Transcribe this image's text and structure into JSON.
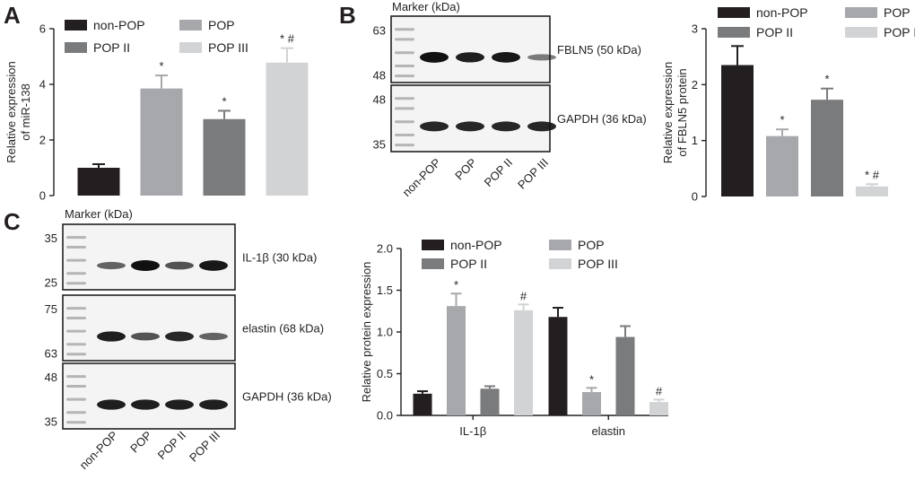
{
  "panels": [
    {
      "letter": "A"
    },
    {
      "letter": "B"
    },
    {
      "letter": "C"
    }
  ],
  "groups": [
    "non-POP",
    "POP",
    "POP II",
    "POP III"
  ],
  "colors": {
    "non-POP": "#231f20",
    "POP": "#a6a8ab",
    "POP II": "#7a7b7d",
    "POP III": "#d1d3d4"
  },
  "blots": {
    "B": {
      "marker_title": "Marker (kDa)",
      "lane_labels": [
        "non-POP",
        "POP",
        "POP II",
        "POP III"
      ],
      "strips": [
        {
          "label": "FBLN5 (50 kDa)",
          "marker_kda": [
            "63",
            "48"
          ],
          "band_intensity": [
            1.0,
            0.9,
            0.95,
            0.3
          ]
        },
        {
          "label": "GAPDH (36 kDa)",
          "marker_kda": [
            "48",
            "35"
          ],
          "band_intensity": [
            0.85,
            0.85,
            0.85,
            0.85
          ]
        }
      ]
    },
    "C": {
      "marker_title": "Marker (kDa)",
      "lane_labels": [
        "non-POP",
        "POP",
        "POP II",
        "POP III"
      ],
      "strips": [
        {
          "label": "IL-1β (30 kDa)",
          "marker_kda": [
            "35",
            "25"
          ],
          "band_intensity": [
            0.45,
            1.0,
            0.55,
            0.95
          ]
        },
        {
          "label": "elastin (68 kDa)",
          "marker_kda": [
            "75",
            "63"
          ],
          "band_intensity": [
            0.9,
            0.55,
            0.85,
            0.45
          ]
        },
        {
          "label": "GAPDH (36 kDa)",
          "marker_kda": [
            "48",
            "35"
          ],
          "band_intensity": [
            0.9,
            0.9,
            0.9,
            0.9
          ]
        }
      ]
    }
  },
  "chart_data": [
    {
      "panel": "A",
      "type": "bar",
      "categories": [
        "non-POP",
        "POP",
        "POP II",
        "POP III"
      ],
      "values": [
        1.0,
        3.85,
        2.75,
        4.78
      ],
      "errors": [
        0.13,
        0.47,
        0.3,
        0.52
      ],
      "significance": [
        "",
        "*",
        "*",
        "* #"
      ],
      "ylabel": "Relative expression of miR-138",
      "ylim": [
        0,
        6
      ],
      "yticks": [
        0,
        2,
        4,
        6
      ],
      "legend": [
        "non-POP",
        "POP",
        "POP II",
        "POP III"
      ],
      "legend_position": "top"
    },
    {
      "panel": "B",
      "type": "bar",
      "categories": [
        "non-POP",
        "POP",
        "POP II",
        "POP III"
      ],
      "values": [
        2.35,
        1.08,
        1.73,
        0.18
      ],
      "errors": [
        0.34,
        0.12,
        0.2,
        0.04
      ],
      "significance": [
        "",
        "*",
        "*",
        "* #"
      ],
      "ylabel": "Relative expression of FBLN5 protein",
      "ylim": [
        0,
        3
      ],
      "yticks": [
        0,
        1,
        2,
        3
      ],
      "legend": [
        "non-POP",
        "POP",
        "POP II",
        "POP III"
      ],
      "legend_position": "top"
    },
    {
      "panel": "C",
      "type": "bar",
      "categories": [
        "IL-1β",
        "elastin"
      ],
      "series": [
        {
          "name": "non-POP",
          "values": [
            0.26,
            1.18
          ],
          "errors": [
            0.03,
            0.11
          ],
          "significance": [
            "",
            ""
          ]
        },
        {
          "name": "POP",
          "values": [
            1.31,
            0.28
          ],
          "errors": [
            0.15,
            0.05
          ],
          "significance": [
            "*",
            "*"
          ]
        },
        {
          "name": "POP II",
          "values": [
            0.32,
            0.94
          ],
          "errors": [
            0.03,
            0.13
          ],
          "significance": [
            "",
            ""
          ]
        },
        {
          "name": "POP III",
          "values": [
            1.26,
            0.16
          ],
          "errors": [
            0.07,
            0.03
          ],
          "significance": [
            "#",
            "#"
          ]
        }
      ],
      "ylabel": "Relative protein expression",
      "ylim": [
        0,
        2.0
      ],
      "yticks": [
        "0.0",
        "0.5",
        "1.0",
        "1.5",
        "2.0"
      ],
      "legend": [
        "non-POP",
        "POP",
        "POP II",
        "POP III"
      ],
      "legend_position": "top"
    }
  ]
}
